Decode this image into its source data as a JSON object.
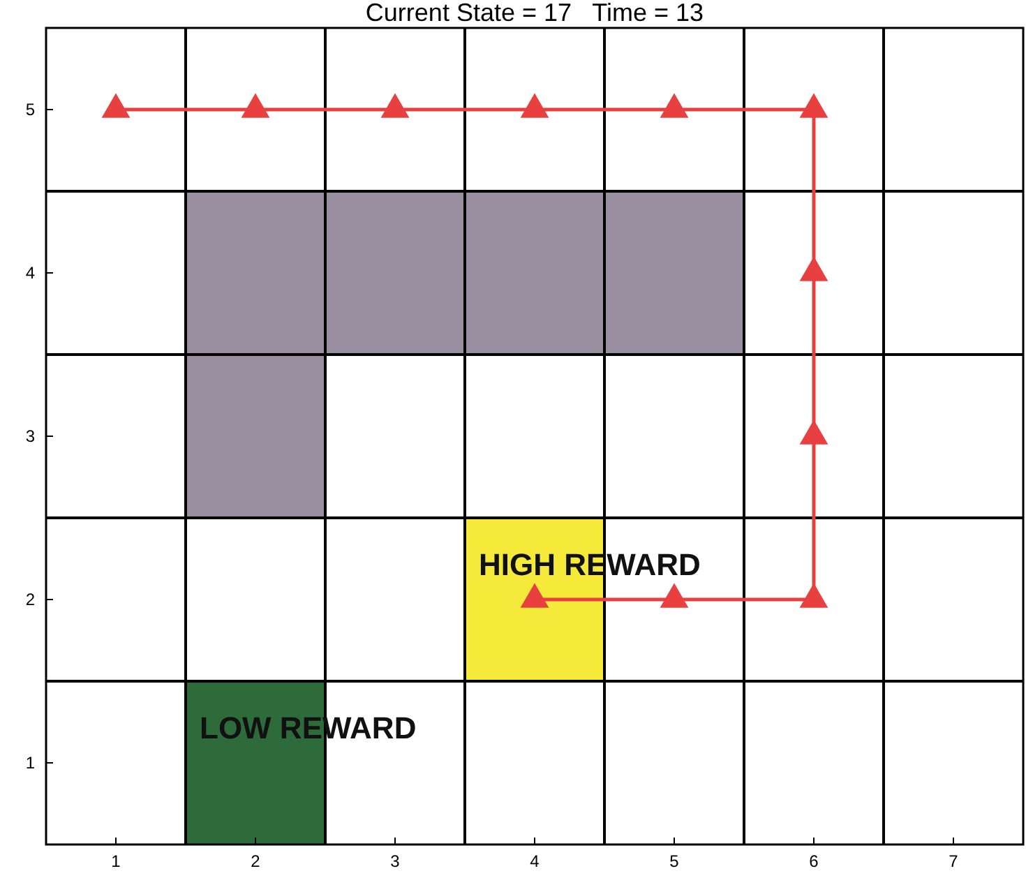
{
  "chart_data": {
    "type": "line",
    "title": "Current State = 17   Time = 13",
    "xlim": [
      0.5,
      7.5
    ],
    "ylim": [
      0.5,
      5.5
    ],
    "xticks": [
      1,
      2,
      3,
      4,
      5,
      6,
      7
    ],
    "yticks": [
      1,
      2,
      3,
      4,
      5
    ],
    "series": [
      {
        "type": "bar",
        "color": "#9a8fa0",
        "x": [
          2,
          3,
          4,
          5
        ],
        "base": [
          2.5,
          3.5,
          3.5,
          3.5
        ],
        "values": [
          2,
          1,
          1,
          1
        ]
      },
      {
        "type": "bar",
        "color": "#f5ea3a",
        "x": [
          4
        ],
        "base": [
          1.5
        ],
        "values": [
          1
        ]
      },
      {
        "type": "bar",
        "color": "#2e6b3a",
        "x": [
          2
        ],
        "base": [
          0.5
        ],
        "values": [
          1
        ]
      },
      {
        "color": "#e8403f",
        "marker": "triangle",
        "x": [
          1,
          2,
          3,
          4,
          5,
          6,
          6,
          6,
          6,
          5,
          4
        ],
        "values": [
          5,
          5,
          5,
          5,
          5,
          5,
          4,
          3,
          2,
          2,
          2
        ]
      }
    ],
    "ref_lines": [
      {
        "axis": "x",
        "value": 1.5,
        "color": "#000000"
      },
      {
        "axis": "x",
        "value": 2.5,
        "color": "#000000"
      },
      {
        "axis": "x",
        "value": 3.5,
        "color": "#000000"
      },
      {
        "axis": "x",
        "value": 4.5,
        "color": "#000000"
      },
      {
        "axis": "x",
        "value": 5.5,
        "color": "#000000"
      },
      {
        "axis": "x",
        "value": 6.5,
        "color": "#000000"
      },
      {
        "axis": "y",
        "value": 1.5,
        "color": "#000000"
      },
      {
        "axis": "y",
        "value": 2.5,
        "color": "#000000"
      },
      {
        "axis": "y",
        "value": 3.5,
        "color": "#000000"
      },
      {
        "axis": "y",
        "value": 4.5,
        "color": "#000000"
      }
    ],
    "annotations": [
      {
        "text": "HIGH REWARD",
        "x": 4,
        "y": 2.5
      },
      {
        "text": "LOW REWARD",
        "x": 2,
        "y": 1.5
      }
    ]
  }
}
